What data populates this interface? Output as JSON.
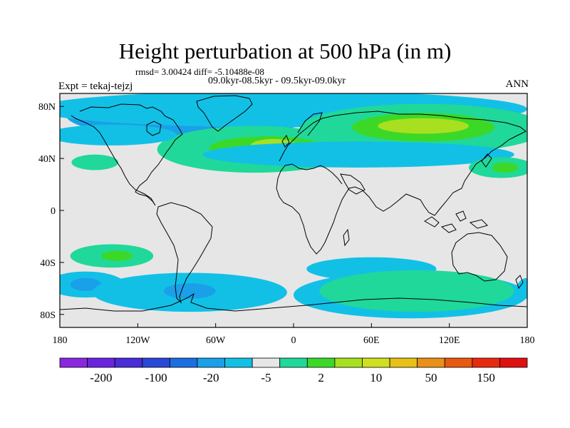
{
  "title": "Height perturbation at 500 hPa (in m)",
  "stats": "rmsd= 3.00424 diff= -5.10488e-08",
  "period": "09.0kyr-08.5kyr - 09.5kyr-09.0kyr",
  "expt": "Expt = tekaj-tejzj",
  "season": "ANN",
  "chart_data": {
    "type": "map",
    "xlim": [
      -180,
      180
    ],
    "ylim": [
      -90,
      90
    ],
    "x_ticks": [
      {
        "value": -180,
        "label": "180"
      },
      {
        "value": -120,
        "label": "120W"
      },
      {
        "value": -60,
        "label": "60W"
      },
      {
        "value": 0,
        "label": "0"
      },
      {
        "value": 60,
        "label": "60E"
      },
      {
        "value": 120,
        "label": "120E"
      },
      {
        "value": 180,
        "label": "180"
      }
    ],
    "y_ticks": [
      {
        "value": 80,
        "label": "80N"
      },
      {
        "value": 40,
        "label": "40N"
      },
      {
        "value": 0,
        "label": "0"
      },
      {
        "value": -40,
        "label": "40S"
      },
      {
        "value": -80,
        "label": "80S"
      }
    ],
    "colorbar": {
      "colors": [
        "#8a28e0",
        "#6a24e0",
        "#4a2cd8",
        "#2848d8",
        "#1a6ee0",
        "#1aa0e8",
        "#12c0e6",
        "#e6e6e6",
        "#20d89a",
        "#3cd828",
        "#a8e020",
        "#d0e020",
        "#e8c018",
        "#e89018",
        "#e85a10",
        "#e82a10",
        "#e01010"
      ],
      "labels": [
        "-200",
        "-100",
        "-20",
        "-5",
        "2",
        "10",
        "50",
        "150"
      ],
      "label_positions": [
        1,
        3,
        5,
        7,
        9,
        11,
        13,
        15
      ]
    },
    "anomaly_regions": [
      {
        "level": "#1a6ee0",
        "lon": -55,
        "lat": 75,
        "rx": 60,
        "ry": 12
      },
      {
        "level": "#1aa0e8",
        "lon": -80,
        "lat": 73,
        "rx": 95,
        "ry": 17
      },
      {
        "level": "#1a6ee0",
        "lon": 15,
        "lat": 80,
        "rx": 30,
        "ry": 6
      },
      {
        "level": "#12c0e6",
        "lon": -10,
        "lat": 78,
        "rx": 190,
        "ry": 14
      },
      {
        "level": "#20d89a",
        "lon": -30,
        "lat": 47,
        "rx": 75,
        "ry": 18
      },
      {
        "level": "#3cd828",
        "lon": -20,
        "lat": 48,
        "rx": 45,
        "ry": 9
      },
      {
        "level": "#a8e020",
        "lon": -15,
        "lat": 50,
        "rx": 18,
        "ry": 5
      },
      {
        "level": "#20d89a",
        "lon": 100,
        "lat": 63,
        "rx": 95,
        "ry": 19
      },
      {
        "level": "#3cd828",
        "lon": 100,
        "lat": 64,
        "rx": 55,
        "ry": 11
      },
      {
        "level": "#a8e020",
        "lon": 100,
        "lat": 65,
        "rx": 35,
        "ry": 6
      },
      {
        "level": "#12c0e6",
        "lon": 50,
        "lat": 43,
        "rx": 120,
        "ry": 10
      },
      {
        "level": "#12c0e6",
        "lon": -140,
        "lat": 58,
        "rx": 50,
        "ry": 8
      },
      {
        "level": "#20d89a",
        "lon": -153,
        "lat": 37,
        "rx": 18,
        "ry": 6
      },
      {
        "level": "#20d89a",
        "lon": 160,
        "lat": 33,
        "rx": 25,
        "ry": 8
      },
      {
        "level": "#3cd828",
        "lon": 163,
        "lat": 33,
        "rx": 10,
        "ry": 4
      },
      {
        "level": "#20d89a",
        "lon": -140,
        "lat": -35,
        "rx": 32,
        "ry": 9
      },
      {
        "level": "#3cd828",
        "lon": -136,
        "lat": -35,
        "rx": 12,
        "ry": 4
      },
      {
        "level": "#12c0e6",
        "lon": -160,
        "lat": -57,
        "rx": 30,
        "ry": 10
      },
      {
        "level": "#1aa0e8",
        "lon": -160,
        "lat": -57,
        "rx": 12,
        "ry": 5
      },
      {
        "level": "#12c0e6",
        "lon": -80,
        "lat": -63,
        "rx": 75,
        "ry": 15
      },
      {
        "level": "#1aa0e8",
        "lon": -80,
        "lat": -62,
        "rx": 20,
        "ry": 6
      },
      {
        "level": "#12c0e6",
        "lon": 60,
        "lat": -45,
        "rx": 50,
        "ry": 9
      },
      {
        "level": "#12c0e6",
        "lon": 90,
        "lat": -65,
        "rx": 90,
        "ry": 18
      },
      {
        "level": "#20d89a",
        "lon": 95,
        "lat": -62,
        "rx": 75,
        "ry": 16
      },
      {
        "level": "#12c0e6",
        "lon": 180,
        "lat": -60,
        "rx": 8,
        "ry": 8
      }
    ]
  }
}
